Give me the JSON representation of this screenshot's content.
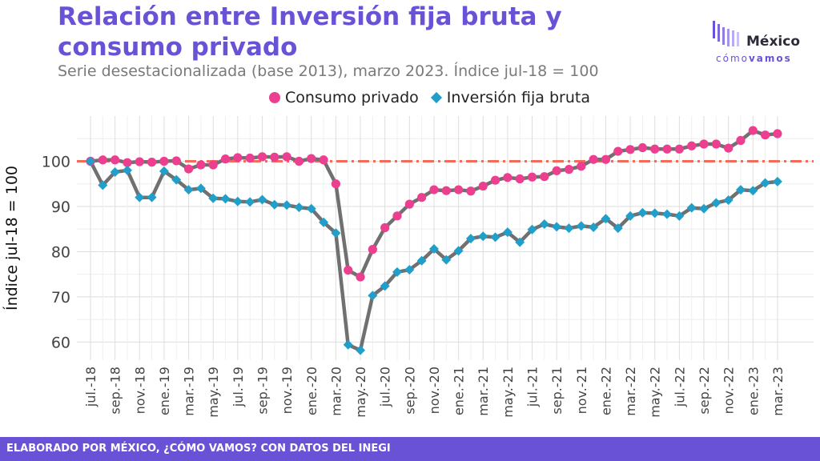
{
  "header": {
    "title": "Relación entre Inversión fija bruta y consumo privado",
    "subtitle": "Serie desestacionalizada (base 2013), marzo 2023. Índice jul-18 = 100"
  },
  "logo": {
    "main": "México",
    "sub_light": "cómo",
    "sub_bold": "vamos"
  },
  "footer": {
    "text": "ELABORADO POR MÉXICO, ¿CÓMO VAMOS? CON DATOS DEL INEGI"
  },
  "colors": {
    "consumo": "#ec3f8f",
    "inversion": "#1f9fc9",
    "line": "#707070",
    "reference": "#f26b5b",
    "accent": "#6a52d6"
  },
  "chart_data": {
    "type": "line",
    "ylabel": "Índice jul-18 = 100",
    "xlabel": "",
    "ylim": [
      56,
      110
    ],
    "yticks": [
      60,
      70,
      80,
      90,
      100
    ],
    "grid": true,
    "legend_position": "top",
    "reference_line": {
      "y": 100,
      "style": "dash-dot"
    },
    "x": [
      "jul.-18",
      "ago.-18",
      "sep.-18",
      "oct.-18",
      "nov.-18",
      "dic.-18",
      "ene.-19",
      "feb.-19",
      "mar.-19",
      "abr.-19",
      "may.-19",
      "jun.-19",
      "jul.-19",
      "ago.-19",
      "sep.-19",
      "oct.-19",
      "nov.-19",
      "dic.-19",
      "ene.-20",
      "feb.-20",
      "mar.-20",
      "abr.-20",
      "may.-20",
      "jun.-20",
      "jul.-20",
      "ago.-20",
      "sep.-20",
      "oct.-20",
      "nov.-20",
      "dic.-20",
      "ene.-21",
      "feb.-21",
      "mar.-21",
      "abr.-21",
      "may.-21",
      "jun.-21",
      "jul.-21",
      "ago.-21",
      "sep.-21",
      "oct.-21",
      "nov.-21",
      "dic.-21",
      "ene.-22",
      "feb.-22",
      "mar.-22",
      "abr.-22",
      "may.-22",
      "jun.-22",
      "jul.-22",
      "ago.-22",
      "sep.-22",
      "oct.-22",
      "nov.-22",
      "dic.-22",
      "ene.-23",
      "feb.-23",
      "mar.-23"
    ],
    "tick_labels": [
      "jul.-18",
      "sep.-18",
      "nov.-18",
      "ene.-19",
      "mar.-19",
      "may.-19",
      "jul.-19",
      "sep.-19",
      "nov.-19",
      "ene.-20",
      "mar.-20",
      "may.-20",
      "jul.-20",
      "sep.-20",
      "nov.-20",
      "ene.-21",
      "mar.-21",
      "may.-21",
      "jul.-21",
      "sep.-21",
      "nov.-21",
      "ene.-22",
      "mar.-22",
      "may.-22",
      "jul.-22",
      "sep.-22",
      "nov.-22",
      "ene.-23",
      "mar.-23"
    ],
    "series": [
      {
        "name": "Consumo privado",
        "marker": "circle",
        "values": [
          100.0,
          100.3,
          100.3,
          99.7,
          99.9,
          99.8,
          100.0,
          100.1,
          98.3,
          99.2,
          99.2,
          100.5,
          100.8,
          100.7,
          101.0,
          100.9,
          101.0,
          100.0,
          100.6,
          100.3,
          95.0,
          75.9,
          74.4,
          80.5,
          85.3,
          87.9,
          90.5,
          92.0,
          93.7,
          93.5,
          93.7,
          93.4,
          94.5,
          95.8,
          96.4,
          96.1,
          96.5,
          96.6,
          97.9,
          98.2,
          98.9,
          100.4,
          100.4,
          102.2,
          102.6,
          103.0,
          102.7,
          102.7,
          102.7,
          103.4,
          103.8,
          103.8,
          102.9,
          104.6,
          106.8,
          105.8,
          106.1
        ]
      },
      {
        "name": "Inversión fija bruta",
        "marker": "diamond",
        "values": [
          100.0,
          94.7,
          97.6,
          98.0,
          92.0,
          92.0,
          97.8,
          95.9,
          93.7,
          94.0,
          91.8,
          91.7,
          91.1,
          91.0,
          91.5,
          90.4,
          90.3,
          89.8,
          89.5,
          86.5,
          84.1,
          59.4,
          58.2,
          70.3,
          72.4,
          75.5,
          76.0,
          78.0,
          80.6,
          78.2,
          80.2,
          82.9,
          83.4,
          83.2,
          84.3,
          82.1,
          84.9,
          86.1,
          85.5,
          85.2,
          85.7,
          85.4,
          87.3,
          85.2,
          87.9,
          88.6,
          88.5,
          88.3,
          87.9,
          89.7,
          89.5,
          90.8,
          91.4,
          93.7,
          93.5,
          95.2,
          95.5
        ]
      }
    ]
  }
}
